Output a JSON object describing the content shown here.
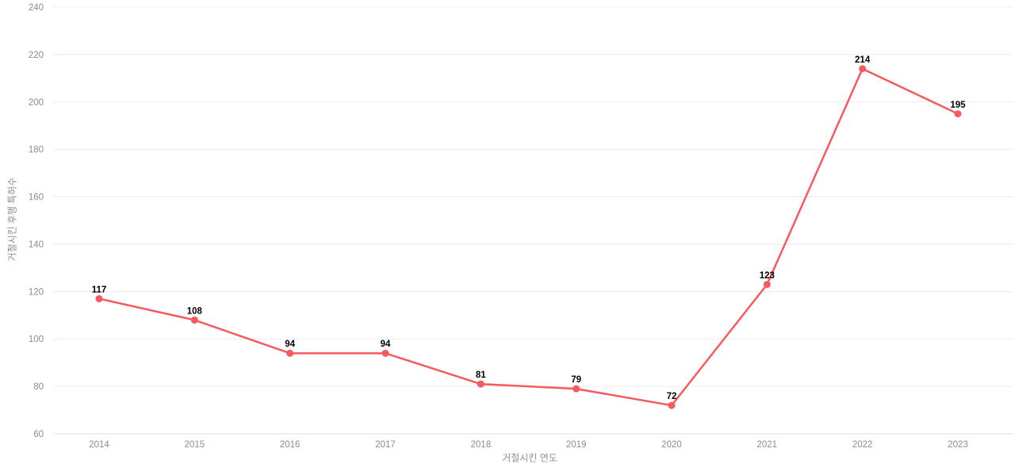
{
  "chart_data": {
    "type": "line",
    "categories": [
      "2014",
      "2015",
      "2016",
      "2017",
      "2018",
      "2019",
      "2020",
      "2021",
      "2022",
      "2023"
    ],
    "values": [
      117,
      108,
      94,
      94,
      81,
      79,
      72,
      123,
      214,
      195
    ],
    "title": "",
    "xlabel": "거절시킨 연도",
    "ylabel": "거절시킨 후행 특허수",
    "ylim": [
      60,
      240
    ],
    "ytick_step": 20,
    "yticks": [
      60,
      80,
      100,
      120,
      140,
      160,
      180,
      200,
      220,
      240
    ],
    "grid": true,
    "legend": "none",
    "colors": {
      "line": "#f65a5f",
      "marker": "#f65a5f",
      "data_label": "#000000",
      "tick_label": "#8c8c8c",
      "gridline": "#ececec",
      "axis_line": "#dae2ec",
      "background": "#ffffff"
    }
  }
}
